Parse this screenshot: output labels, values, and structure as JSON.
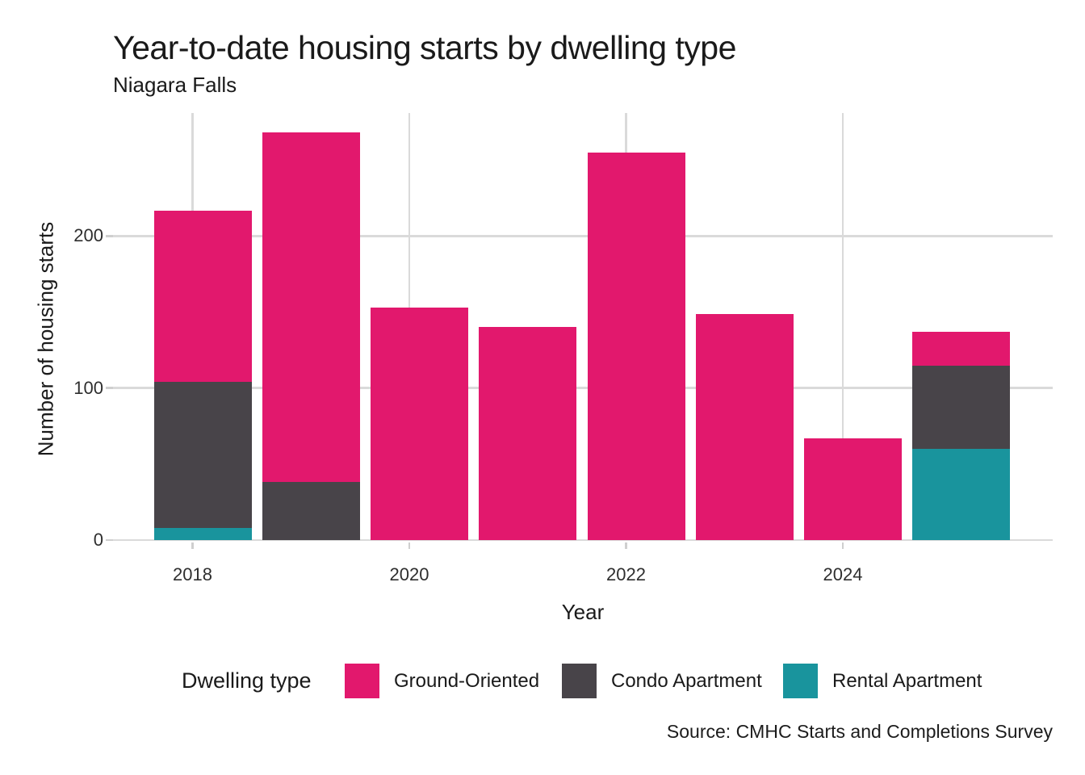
{
  "title": "Year-to-date housing starts by dwelling type",
  "subtitle": "Niagara Falls",
  "source_note": "Source: CMHC Starts and Completions Survey",
  "axes": {
    "x_label": "Year",
    "y_label": "Number of housing starts",
    "x_tick_labels": [
      "2018",
      "2020",
      "2022",
      "2024"
    ],
    "x_tick_years": [
      2018,
      2020,
      2022,
      2024
    ],
    "y_ticks": [
      0,
      100,
      200
    ]
  },
  "legend": {
    "title": "Dwelling type",
    "items": [
      {
        "label": "Ground-Oriented",
        "color": "#E2186D"
      },
      {
        "label": "Condo Apartment",
        "color": "#484449"
      },
      {
        "label": "Rental Apartment",
        "color": "#19949D"
      }
    ]
  },
  "chart_data": {
    "type": "bar",
    "stacked": true,
    "title": "Year-to-date housing starts by dwelling type",
    "subtitle": "Niagara Falls",
    "xlabel": "Year",
    "ylabel": "Number of housing starts",
    "categories": [
      2018,
      2019,
      2020,
      2021,
      2022,
      2023,
      2024,
      2025
    ],
    "series": [
      {
        "name": "Ground-Oriented",
        "color": "#E2186D",
        "values": [
          113,
          230,
          153,
          140,
          255,
          149,
          67,
          22
        ]
      },
      {
        "name": "Condo Apartment",
        "color": "#484449",
        "values": [
          96,
          38,
          0,
          0,
          0,
          0,
          0,
          55
        ]
      },
      {
        "name": "Rental Apartment",
        "color": "#19949D",
        "values": [
          8,
          0,
          0,
          0,
          0,
          0,
          0,
          60
        ]
      }
    ],
    "totals": [
      217,
      268,
      153,
      140,
      255,
      149,
      67,
      137
    ],
    "ylim": [
      0,
      281
    ],
    "grid": true,
    "legend_position": "bottom",
    "source": "Source: CMHC Starts and Completions Survey"
  }
}
